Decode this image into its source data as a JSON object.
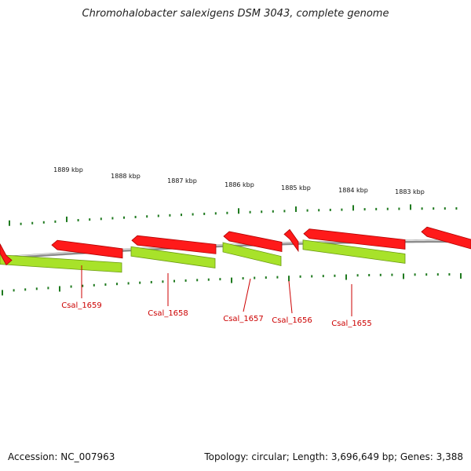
{
  "header": {
    "title": "Chromohalobacter salexigens DSM 3043, complete genome"
  },
  "footer": {
    "accession": "Accession: NC_007963",
    "summary": "Topology: circular; Length: 3,696,649 bp; Genes: 3,388"
  },
  "colors": {
    "gene_forward": "#ff1a1a",
    "cds": "#a8e22a",
    "backbone": "#8c8c8c",
    "tick": "#1f7a1f",
    "label": "#cc0000"
  },
  "position_labels": [
    "1889 kbp",
    "1888 kbp",
    "1887 kbp",
    "1886 kbp",
    "1885 kbp",
    "1884 kbp",
    "1883 kbp"
  ],
  "gene_labels": [
    "Csal_1659",
    "Csal_1658",
    "Csal_1657",
    "Csal_1656",
    "Csal_1655"
  ]
}
